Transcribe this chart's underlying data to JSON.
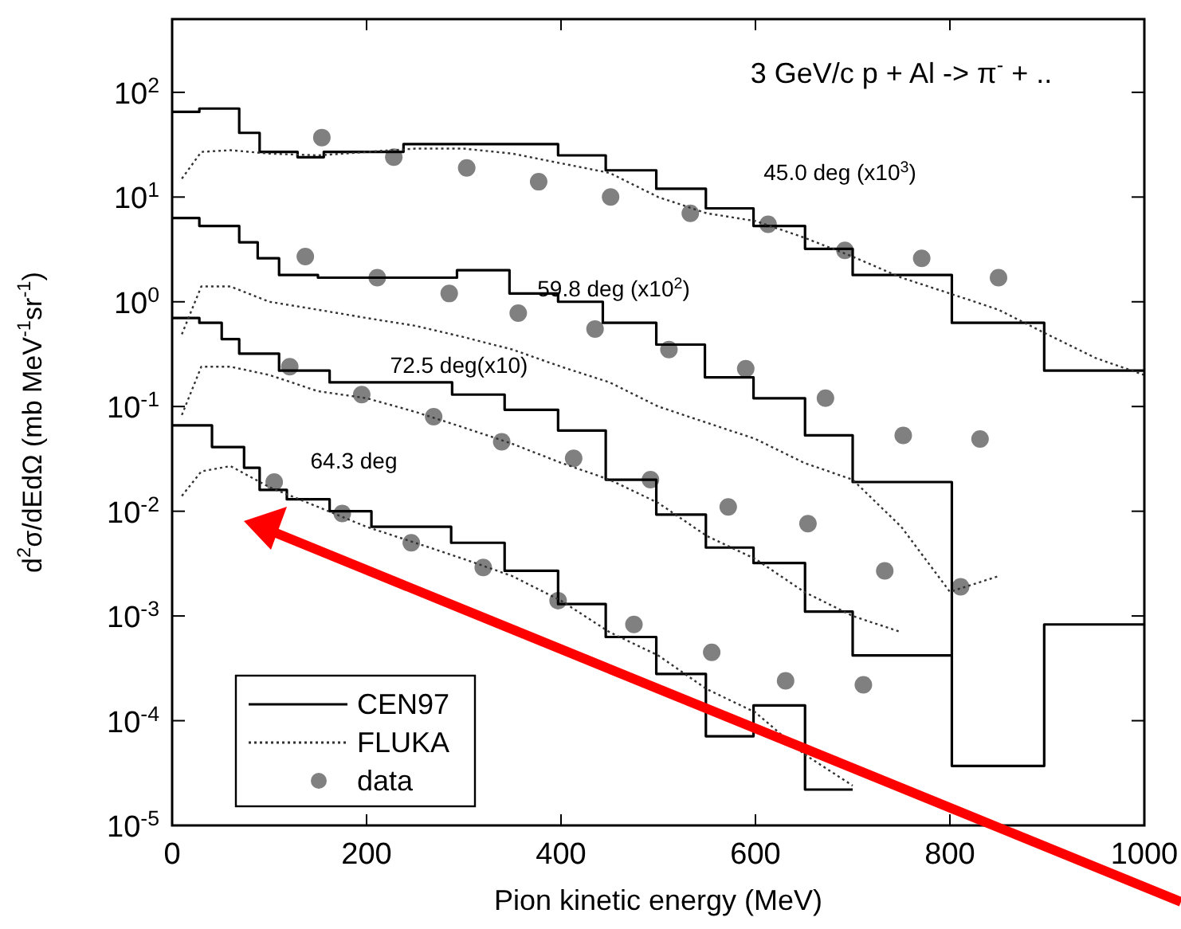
{
  "chart_data": {
    "type": "step",
    "title": "3 GeV/c p + Al -> π$^{-}$ + ..",
    "xlabel": "Pion kinetic energy (MeV)",
    "ylabel": "d$^{2}$σ/dEdΩ (mb MeV$^{-1}$sr$^{-1}$)",
    "log": "y",
    "xlim": [
      0,
      1000
    ],
    "ylim": [
      1e-05,
      500
    ],
    "xticks": [
      0,
      200,
      400,
      600,
      800,
      1000
    ],
    "yticks": [
      {
        "value": 1e-05,
        "label": "10$^{-5}$"
      },
      {
        "value": 0.0001,
        "label": "10$^{-4}$"
      },
      {
        "value": 0.001,
        "label": "10$^{-3}$"
      },
      {
        "value": 0.01,
        "label": "10$^{-2}$"
      },
      {
        "value": 0.1,
        "label": "10$^{-1}$"
      },
      {
        "value": 1,
        "label": "10$^{0}$"
      },
      {
        "value": 10,
        "label": "10$^{1}$"
      },
      {
        "value": 100,
        "label": "10$^{2}$"
      }
    ],
    "grid": false,
    "legend": "bottom left",
    "series": [
      {
        "name": "CEN97",
        "color": "#000000",
        "x": [
          0,
          28,
          69,
          90,
          129,
          156,
          238,
          397,
          446,
          498,
          549,
          598,
          651,
          700,
          802,
          897,
          1000
        ],
        "values": [
          65,
          70,
          41,
          27,
          24,
          27,
          32,
          25,
          18,
          12,
          7.8,
          5.3,
          3.2,
          1.8,
          0.63,
          0.22,
          0.22
        ]
      },
      {
        "color": "#000000",
        "x": [
          0,
          28,
          69,
          88,
          110,
          150,
          293,
          347,
          397,
          443,
          498,
          548,
          598,
          651,
          700,
          802,
          897,
          1000
        ],
        "values": [
          6.3,
          5.3,
          3.7,
          2.6,
          1.8,
          1.7,
          2.0,
          1.2,
          1.0,
          0.63,
          0.39,
          0.19,
          0.12,
          0.053,
          0.019,
          3.7e-05,
          0.00083,
          0.00083
        ]
      },
      {
        "color": "#000000",
        "x": [
          0,
          28,
          51,
          69,
          110,
          162,
          288,
          342,
          397,
          446,
          498,
          549,
          598,
          651,
          700,
          802
        ],
        "values": [
          0.7,
          0.63,
          0.44,
          0.32,
          0.22,
          0.17,
          0.13,
          0.093,
          0.059,
          0.02,
          0.0093,
          0.0045,
          0.0032,
          0.0011,
          0.00042,
          0.00042
        ]
      },
      {
        "color": "#000000",
        "x": [
          0,
          41,
          74,
          90,
          118,
          162,
          205,
          287,
          342,
          397,
          446,
          498,
          549,
          598,
          651,
          700
        ],
        "values": [
          0.066,
          0.041,
          0.026,
          0.016,
          0.013,
          0.01,
          0.0071,
          0.005,
          0.0027,
          0.0013,
          0.00063,
          0.00028,
          7.1e-05,
          0.00014,
          2.2e-05,
          2.2e-05
        ]
      },
      {
        "name": "FLUKA",
        "type": "line",
        "line_style": "dotted",
        "color": "#333333",
        "x": [
          10,
          30,
          60,
          100,
          150,
          200,
          250,
          300,
          350,
          400,
          450,
          500,
          550,
          600,
          650,
          700,
          750,
          800,
          850,
          900,
          950,
          1000
        ],
        "values": [
          15,
          27,
          28,
          26,
          25,
          27,
          29,
          29,
          26,
          21,
          17,
          10,
          7,
          5.9,
          4.1,
          2.7,
          1.7,
          1.2,
          0.84,
          0.49,
          0.29,
          0.2
        ]
      },
      {
        "type": "line",
        "line_style": "dotted",
        "color": "#333333",
        "x": [
          10,
          30,
          60,
          100,
          150,
          200,
          250,
          300,
          350,
          400,
          450,
          500,
          550,
          600,
          650,
          700,
          750,
          800,
          850
        ],
        "values": [
          0.49,
          1.4,
          1.4,
          1.0,
          0.84,
          0.7,
          0.59,
          0.46,
          0.35,
          0.24,
          0.17,
          0.1,
          0.07,
          0.049,
          0.029,
          0.02,
          0.0071,
          0.0017,
          0.0024
        ]
      },
      {
        "type": "line",
        "line_style": "dotted",
        "color": "#333333",
        "x": [
          10,
          30,
          60,
          100,
          150,
          200,
          250,
          300,
          350,
          400,
          450,
          500,
          550,
          600,
          650,
          700,
          750
        ],
        "values": [
          0.083,
          0.24,
          0.24,
          0.2,
          0.14,
          0.12,
          0.089,
          0.063,
          0.044,
          0.029,
          0.02,
          0.012,
          0.0058,
          0.0035,
          0.0017,
          0.001,
          0.0007
        ]
      },
      {
        "type": "line",
        "line_style": "dotted",
        "color": "#333333",
        "x": [
          10,
          30,
          60,
          100,
          150,
          200,
          250,
          300,
          350,
          400,
          450,
          500,
          550,
          600,
          650,
          700
        ],
        "values": [
          0.014,
          0.024,
          0.027,
          0.017,
          0.011,
          0.0071,
          0.005,
          0.0035,
          0.0024,
          0.0014,
          0.0007,
          0.00042,
          0.0002,
          0.00012,
          4.8e-05,
          2.4e-05
        ]
      },
      {
        "name": "data",
        "type": "scatter",
        "marker": "circle",
        "color": "#808080",
        "x": [
          154,
          228,
          303,
          377,
          451,
          533,
          613,
          692,
          771,
          850
        ],
        "values": [
          37,
          24,
          19,
          14,
          10,
          7,
          5.5,
          3.1,
          2.6,
          1.7
        ]
      },
      {
        "type": "scatter",
        "marker": "circle",
        "color": "#808080",
        "x": [
          137,
          211,
          285,
          356,
          435,
          511,
          590,
          672,
          752,
          831
        ],
        "values": [
          2.7,
          1.7,
          1.2,
          0.78,
          0.55,
          0.35,
          0.23,
          0.12,
          0.053,
          0.049
        ]
      },
      {
        "type": "scatter",
        "marker": "circle",
        "color": "#808080",
        "x": [
          121,
          195,
          269,
          339,
          413,
          492,
          572,
          654,
          733,
          811
        ],
        "values": [
          0.24,
          0.13,
          0.08,
          0.046,
          0.032,
          0.02,
          0.011,
          0.0076,
          0.0027,
          0.0019
        ]
      },
      {
        "type": "scatter",
        "marker": "circle",
        "color": "#808080",
        "x": [
          105,
          175,
          246,
          320,
          397,
          475,
          555,
          631,
          711
        ],
        "values": [
          0.019,
          0.0095,
          0.005,
          0.0029,
          0.0014,
          0.00083,
          0.00045,
          0.00024,
          0.00022
        ]
      }
    ],
    "annotations": [
      "45.0 deg (x10$^{3}$)",
      "59.8 deg (x10$^{2}$)",
      "72.5 deg(x10)",
      "64.3 deg"
    ]
  }
}
